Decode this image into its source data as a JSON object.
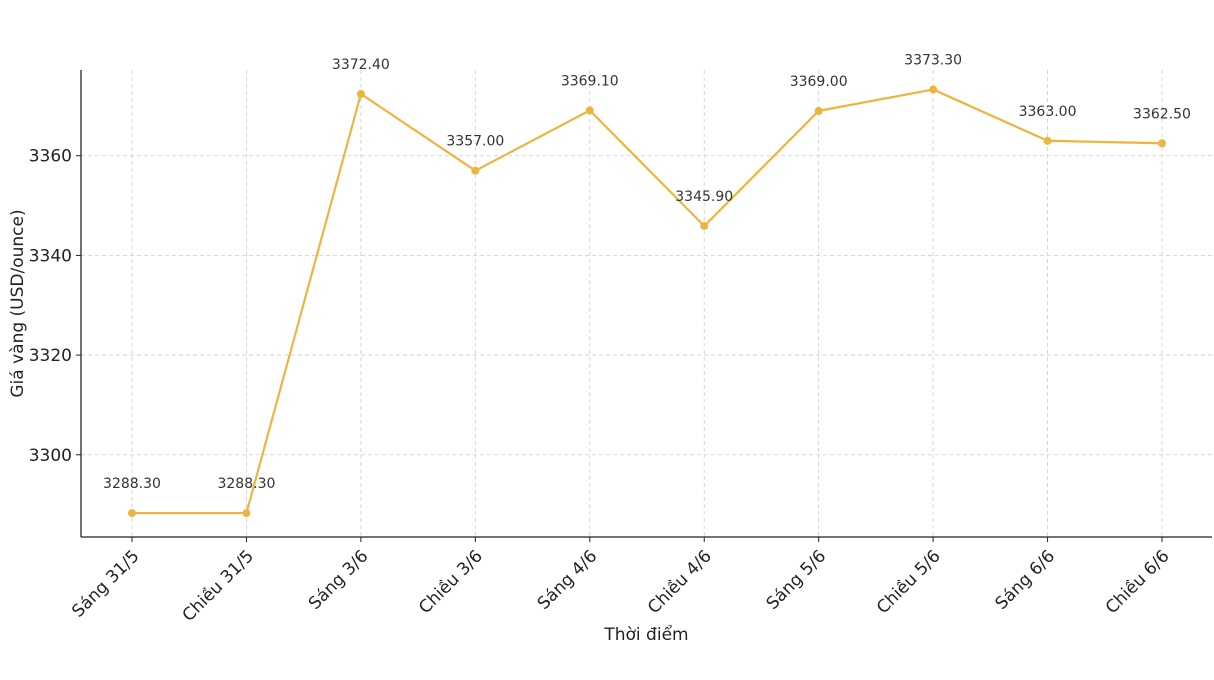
{
  "chart_data": {
    "type": "line",
    "title": "",
    "xlabel": "Thời điểm",
    "ylabel": "Giá vàng (USD/ounce)",
    "categories": [
      "Sáng 31/5",
      "Chiều 31/5",
      "Sáng 3/6",
      "Chiều 3/6",
      "Sáng 4/6",
      "Chiều 4/6",
      "Sáng 5/6",
      "Chiều 5/6",
      "Sáng 6/6",
      "Chiều 6/6"
    ],
    "series": [
      {
        "values": [
          3288.3,
          3288.3,
          3372.4,
          3357.0,
          3369.1,
          3345.9,
          3369.0,
          3373.3,
          3363.0,
          3362.5
        ],
        "data_labels": [
          "3288.30",
          "3288.30",
          "3372.40",
          "3357.00",
          "3369.10",
          "3345.90",
          "3369.00",
          "3373.30",
          "3363.00",
          "3362.50"
        ]
      }
    ],
    "yticks": [
      3300,
      3320,
      3340,
      3360
    ],
    "ylim": [
      3283.5,
      3377.2
    ],
    "grid": true,
    "legend": "none",
    "colors": {
      "line": "#EDB540",
      "grid": "#cccccc",
      "axis": "#222222"
    }
  }
}
